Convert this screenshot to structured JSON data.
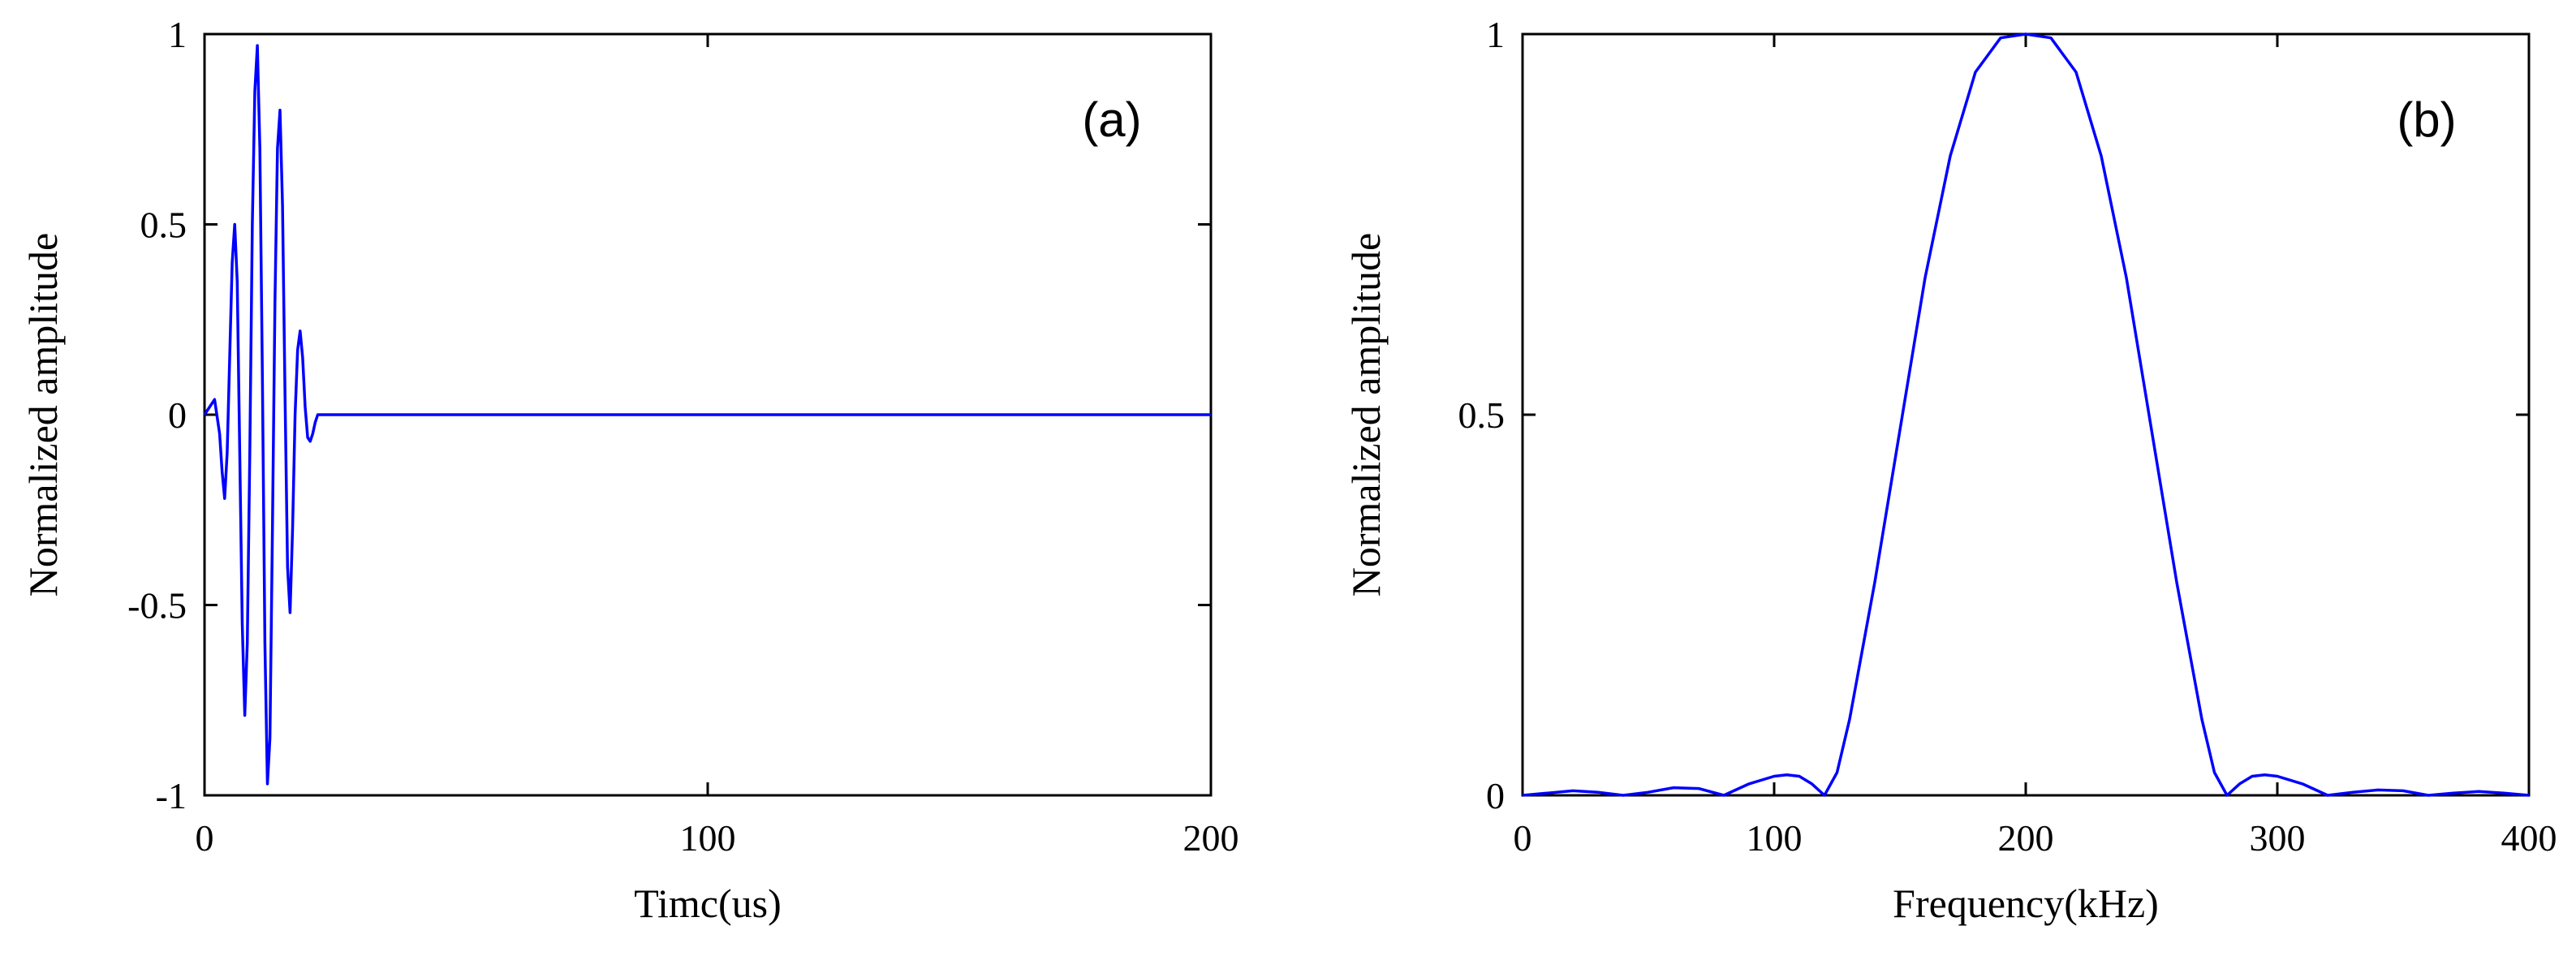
{
  "chart_data": [
    {
      "type": "line",
      "panel_label": "(a)",
      "xlabel": "Timc(us)",
      "ylabel": "Normalized amplitude",
      "xlim": [
        0,
        200
      ],
      "ylim": [
        -1,
        1
      ],
      "xticks": [
        0,
        100,
        200
      ],
      "xtick_labels": [
        "0",
        "100",
        "200"
      ],
      "yticks": [
        -1,
        -0.5,
        0,
        0.5,
        1
      ],
      "ytick_labels": [
        "-1",
        "-0.5",
        "0",
        "0.5",
        "1"
      ],
      "grid": false,
      "series": [
        {
          "color": "#0000ff",
          "x": [
            0,
            1,
            2,
            3,
            3.5,
            4,
            4.5,
            5,
            5.5,
            6,
            6.5,
            7,
            7.5,
            8,
            8.5,
            9,
            9.5,
            10,
            10.5,
            11,
            11.5,
            12,
            12.5,
            13,
            13.5,
            14,
            14.5,
            15,
            15.5,
            16,
            16.5,
            17,
            17.5,
            18,
            18.5,
            19,
            19.5,
            20,
            20.5,
            21,
            21.5,
            22,
            22.5,
            23,
            24,
            25,
            200
          ],
          "y": [
            0,
            0.02,
            0.04,
            -0.05,
            -0.15,
            -0.22,
            -0.1,
            0.15,
            0.4,
            0.5,
            0.35,
            -0.1,
            -0.55,
            -0.79,
            -0.6,
            -0.1,
            0.5,
            0.85,
            0.97,
            0.7,
            0.1,
            -0.6,
            -0.97,
            -0.85,
            -0.3,
            0.3,
            0.7,
            0.8,
            0.55,
            0.05,
            -0.4,
            -0.52,
            -0.3,
            0.0,
            0.17,
            0.22,
            0.15,
            0.02,
            -0.06,
            -0.07,
            -0.05,
            -0.02,
            0.0,
            0.0,
            0.0,
            0.0,
            0.0
          ]
        }
      ]
    },
    {
      "type": "line",
      "panel_label": "(b)",
      "xlabel": "Frequency(kHz)",
      "ylabel": "Normalized amplitude",
      "xlim": [
        0,
        400
      ],
      "ylim": [
        0,
        1
      ],
      "xticks": [
        0,
        100,
        200,
        300,
        400
      ],
      "xtick_labels": [
        "0",
        "100",
        "200",
        "300",
        "400"
      ],
      "yticks": [
        0,
        0.5,
        1
      ],
      "ytick_labels": [
        "0",
        "0.5",
        "1"
      ],
      "grid": false,
      "series": [
        {
          "color": "#0000ff",
          "x": [
            0,
            10,
            20,
            30,
            40,
            50,
            60,
            70,
            80,
            90,
            100,
            105,
            110,
            115,
            120,
            125,
            130,
            140,
            150,
            160,
            170,
            180,
            190,
            200,
            210,
            220,
            230,
            240,
            250,
            260,
            270,
            275,
            280,
            285,
            290,
            295,
            300,
            310,
            320,
            330,
            340,
            350,
            360,
            370,
            380,
            390,
            400
          ],
          "y": [
            0,
            0.003,
            0.006,
            0.004,
            0.0,
            0.004,
            0.01,
            0.009,
            0.0,
            0.015,
            0.025,
            0.027,
            0.025,
            0.015,
            0.0,
            0.03,
            0.1,
            0.28,
            0.48,
            0.68,
            0.84,
            0.95,
            0.995,
            1.0,
            0.995,
            0.95,
            0.84,
            0.68,
            0.48,
            0.28,
            0.1,
            0.03,
            0.0,
            0.015,
            0.025,
            0.027,
            0.025,
            0.015,
            0.0,
            0.004,
            0.007,
            0.006,
            0.0,
            0.003,
            0.005,
            0.003,
            0.0
          ]
        }
      ]
    }
  ]
}
